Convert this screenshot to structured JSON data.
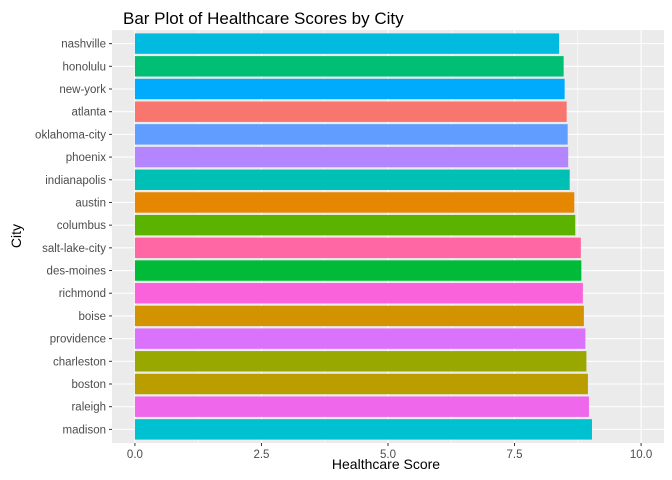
{
  "chart_data": {
    "type": "bar",
    "orientation": "horizontal",
    "title": "Bar Plot of Healthcare Scores by City",
    "xlabel": "Healthcare Score",
    "ylabel": "City",
    "xlim": [
      0,
      10
    ],
    "x_ticks": [
      "0.0",
      "2.5",
      "5.0",
      "7.5",
      "10.0"
    ],
    "grid": true,
    "legend": "none",
    "categories": [
      "nashville",
      "honolulu",
      "new-york",
      "atlanta",
      "oklahoma-city",
      "phoenix",
      "indianapolis",
      "austin",
      "columbus",
      "salt-lake-city",
      "des-moines",
      "richmond",
      "boise",
      "providence",
      "charleston",
      "boston",
      "raleigh",
      "madison"
    ],
    "values": [
      8.38,
      8.47,
      8.49,
      8.53,
      8.55,
      8.56,
      8.59,
      8.68,
      8.7,
      8.81,
      8.82,
      8.85,
      8.87,
      8.9,
      8.92,
      8.95,
      8.97,
      9.03
    ],
    "colors": [
      "#00BAE0",
      "#00BF74",
      "#00ABFD",
      "#F8766D",
      "#619CFF",
      "#B385FF",
      "#00C0B5",
      "#E58700",
      "#5BB300",
      "#FF67A4",
      "#00BA38",
      "#FA62DB",
      "#D39200",
      "#DB72FB",
      "#99A800",
      "#BA9E00",
      "#EF67EB",
      "#00C1D0"
    ]
  }
}
